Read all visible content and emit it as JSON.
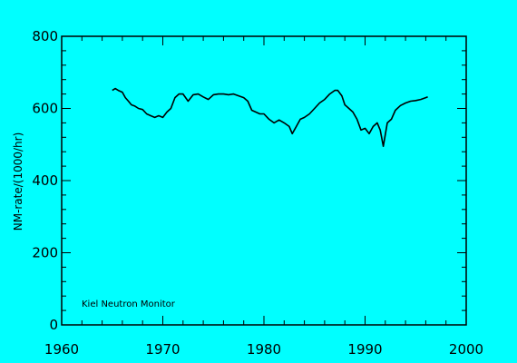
{
  "chart_data": {
    "type": "line",
    "title": "",
    "xlabel": "",
    "ylabel": "NM-rate/(1000/hr)",
    "xlim": [
      1960,
      2000
    ],
    "ylim": [
      0,
      800
    ],
    "x_ticks": [
      "1960",
      "1970",
      "1980",
      "1990",
      "2000"
    ],
    "y_ticks": [
      "0",
      "200",
      "400",
      "600",
      "800"
    ],
    "annotation": "Kiel Neutron Monitor",
    "grid": false,
    "colors": {
      "background": "#00ffff",
      "line": "#000000"
    },
    "series": [
      {
        "x": [
          1965.0,
          1965.3,
          1965.6,
          1966.0,
          1966.3,
          1966.6,
          1966.9,
          1967.2,
          1967.6,
          1968.0,
          1968.4,
          1968.8,
          1969.2,
          1969.6,
          1970.0,
          1970.4,
          1970.8,
          1971.2,
          1971.6,
          1972.0,
          1972.5,
          1973.0,
          1973.5,
          1974.0,
          1974.5,
          1975.0,
          1975.5,
          1976.0,
          1976.5,
          1977.0,
          1977.5,
          1978.0,
          1978.4,
          1978.8,
          1979.2,
          1979.6,
          1980.0,
          1980.5,
          1981.0,
          1981.5,
          1982.0,
          1982.5,
          1982.8,
          1983.2,
          1983.6,
          1984.0,
          1984.5,
          1985.0,
          1985.5,
          1986.0,
          1986.5,
          1987.0,
          1987.3,
          1987.7,
          1988.0,
          1988.4,
          1988.8,
          1989.2,
          1989.6,
          1990.0,
          1990.4,
          1990.8,
          1991.2,
          1991.5,
          1991.8,
          1992.2,
          1992.6,
          1993.0,
          1993.5,
          1994.0,
          1994.5,
          1995.0,
          1995.5,
          1996.0,
          1996.2
        ],
        "y": [
          650,
          655,
          650,
          645,
          630,
          620,
          610,
          607,
          600,
          597,
          585,
          580,
          575,
          580,
          575,
          590,
          600,
          630,
          640,
          640,
          620,
          638,
          640,
          632,
          625,
          638,
          640,
          640,
          638,
          640,
          635,
          630,
          620,
          595,
          590,
          585,
          585,
          570,
          560,
          568,
          560,
          550,
          530,
          550,
          570,
          575,
          585,
          600,
          615,
          625,
          640,
          650,
          650,
          635,
          610,
          600,
          590,
          570,
          540,
          545,
          530,
          550,
          560,
          540,
          495,
          560,
          570,
          595,
          608,
          615,
          620,
          622,
          625,
          630,
          632
        ]
      }
    ]
  }
}
